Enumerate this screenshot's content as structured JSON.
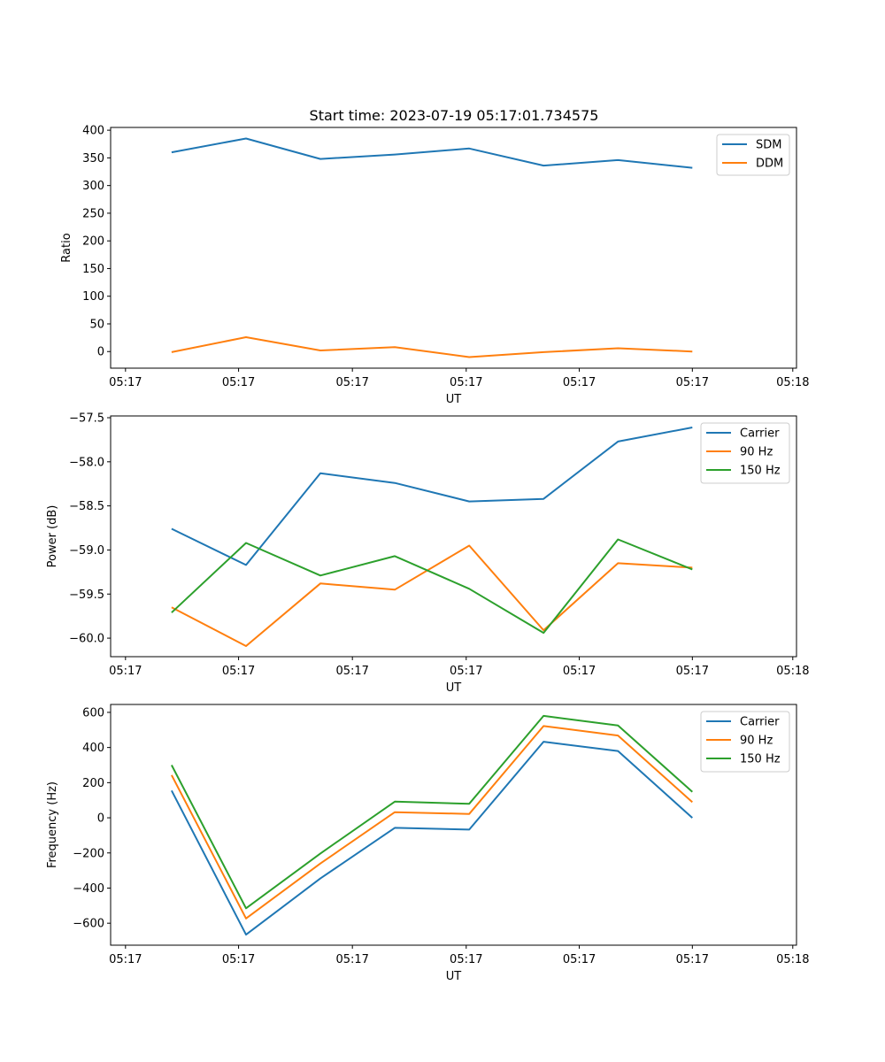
{
  "title": "Start time: 2023-07-19 05:17:01.734575",
  "colors": {
    "blue": "#1f77b4",
    "orange": "#ff7f0e",
    "green": "#2ca02c",
    "axis": "#000000"
  },
  "chart_data": [
    {
      "type": "line",
      "title": "Start time: 2023-07-19 05:17:01.734575",
      "xlabel": "UT",
      "ylabel": "Ratio",
      "x": [
        1,
        2,
        3,
        4,
        5,
        6,
        7,
        8
      ],
      "xlim": [
        0.18,
        9.4
      ],
      "xticks": [
        0.38,
        1.9,
        3.43,
        4.96,
        6.48,
        8.0,
        9.35
      ],
      "xtick_labels": [
        "05:17",
        "05:17",
        "05:17",
        "05:17",
        "05:17",
        "05:17",
        "05:18"
      ],
      "ylim": [
        -30,
        405
      ],
      "yticks": [
        400,
        350,
        300,
        250,
        200,
        150,
        100,
        50,
        0
      ],
      "ytick_labels": [
        "400",
        "350",
        "300",
        "250",
        "200",
        "150",
        "100",
        "50",
        "0"
      ],
      "legend": "top-right",
      "series": [
        {
          "name": "SDM",
          "color": "#1f77b4",
          "values": [
            360,
            385,
            348,
            356,
            367,
            336,
            346,
            332
          ]
        },
        {
          "name": "DDM",
          "color": "#ff7f0e",
          "values": [
            -1,
            26,
            2,
            8,
            -10,
            -1,
            6,
            0
          ]
        }
      ]
    },
    {
      "type": "line",
      "title": "",
      "xlabel": "UT",
      "ylabel": "Power (dB)",
      "x": [
        1,
        2,
        3,
        4,
        5,
        6,
        7,
        8
      ],
      "xlim": [
        0.18,
        9.4
      ],
      "xticks": [
        0.38,
        1.9,
        3.43,
        4.96,
        6.48,
        8.0,
        9.35
      ],
      "xtick_labels": [
        "05:17",
        "05:17",
        "05:17",
        "05:17",
        "05:17",
        "05:17",
        "05:18"
      ],
      "ylim": [
        -60.21,
        -57.48
      ],
      "yticks": [
        -57.5,
        -58.0,
        -58.5,
        -59.0,
        -59.5,
        -60.0
      ],
      "ytick_labels": [
        "−57.5",
        "−58.0",
        "−58.5",
        "−59.0",
        "−59.5",
        "−60.0"
      ],
      "legend": "top-right",
      "series": [
        {
          "name": "Carrier",
          "color": "#1f77b4",
          "values": [
            -58.76,
            -59.17,
            -58.13,
            -58.24,
            -58.45,
            -58.42,
            -57.77,
            -57.61
          ]
        },
        {
          "name": "90 Hz",
          "color": "#ff7f0e",
          "values": [
            -59.65,
            -60.09,
            -59.38,
            -59.45,
            -58.95,
            -59.91,
            -59.15,
            -59.2
          ]
        },
        {
          "name": "150 Hz",
          "color": "#2ca02c",
          "values": [
            -59.71,
            -58.92,
            -59.29,
            -59.07,
            -59.44,
            -59.94,
            -58.88,
            -59.22
          ]
        }
      ]
    },
    {
      "type": "line",
      "title": "",
      "xlabel": "UT",
      "ylabel": "Frequency (Hz)",
      "x": [
        1,
        2,
        3,
        4,
        5,
        6,
        7,
        8
      ],
      "xlim": [
        0.18,
        9.4
      ],
      "xticks": [
        0.38,
        1.9,
        3.43,
        4.96,
        6.48,
        8.0,
        9.35
      ],
      "xtick_labels": [
        "05:17",
        "05:17",
        "05:17",
        "05:17",
        "05:17",
        "05:17",
        "05:18"
      ],
      "ylim": [
        -725,
        645
      ],
      "yticks": [
        600,
        400,
        200,
        0,
        -200,
        -400,
        -600
      ],
      "ytick_labels": [
        "600",
        "400",
        "200",
        "0",
        "−200",
        "−400",
        "−600"
      ],
      "legend": "top-right",
      "series": [
        {
          "name": "Carrier",
          "color": "#1f77b4",
          "values": [
            155,
            -665,
            -345,
            -57,
            -67,
            433,
            380,
            0
          ]
        },
        {
          "name": "90 Hz",
          "color": "#ff7f0e",
          "values": [
            243,
            -573,
            -260,
            32,
            22,
            522,
            468,
            89
          ]
        },
        {
          "name": "150 Hz",
          "color": "#2ca02c",
          "values": [
            300,
            -515,
            -203,
            92,
            80,
            580,
            525,
            148
          ]
        }
      ]
    }
  ]
}
